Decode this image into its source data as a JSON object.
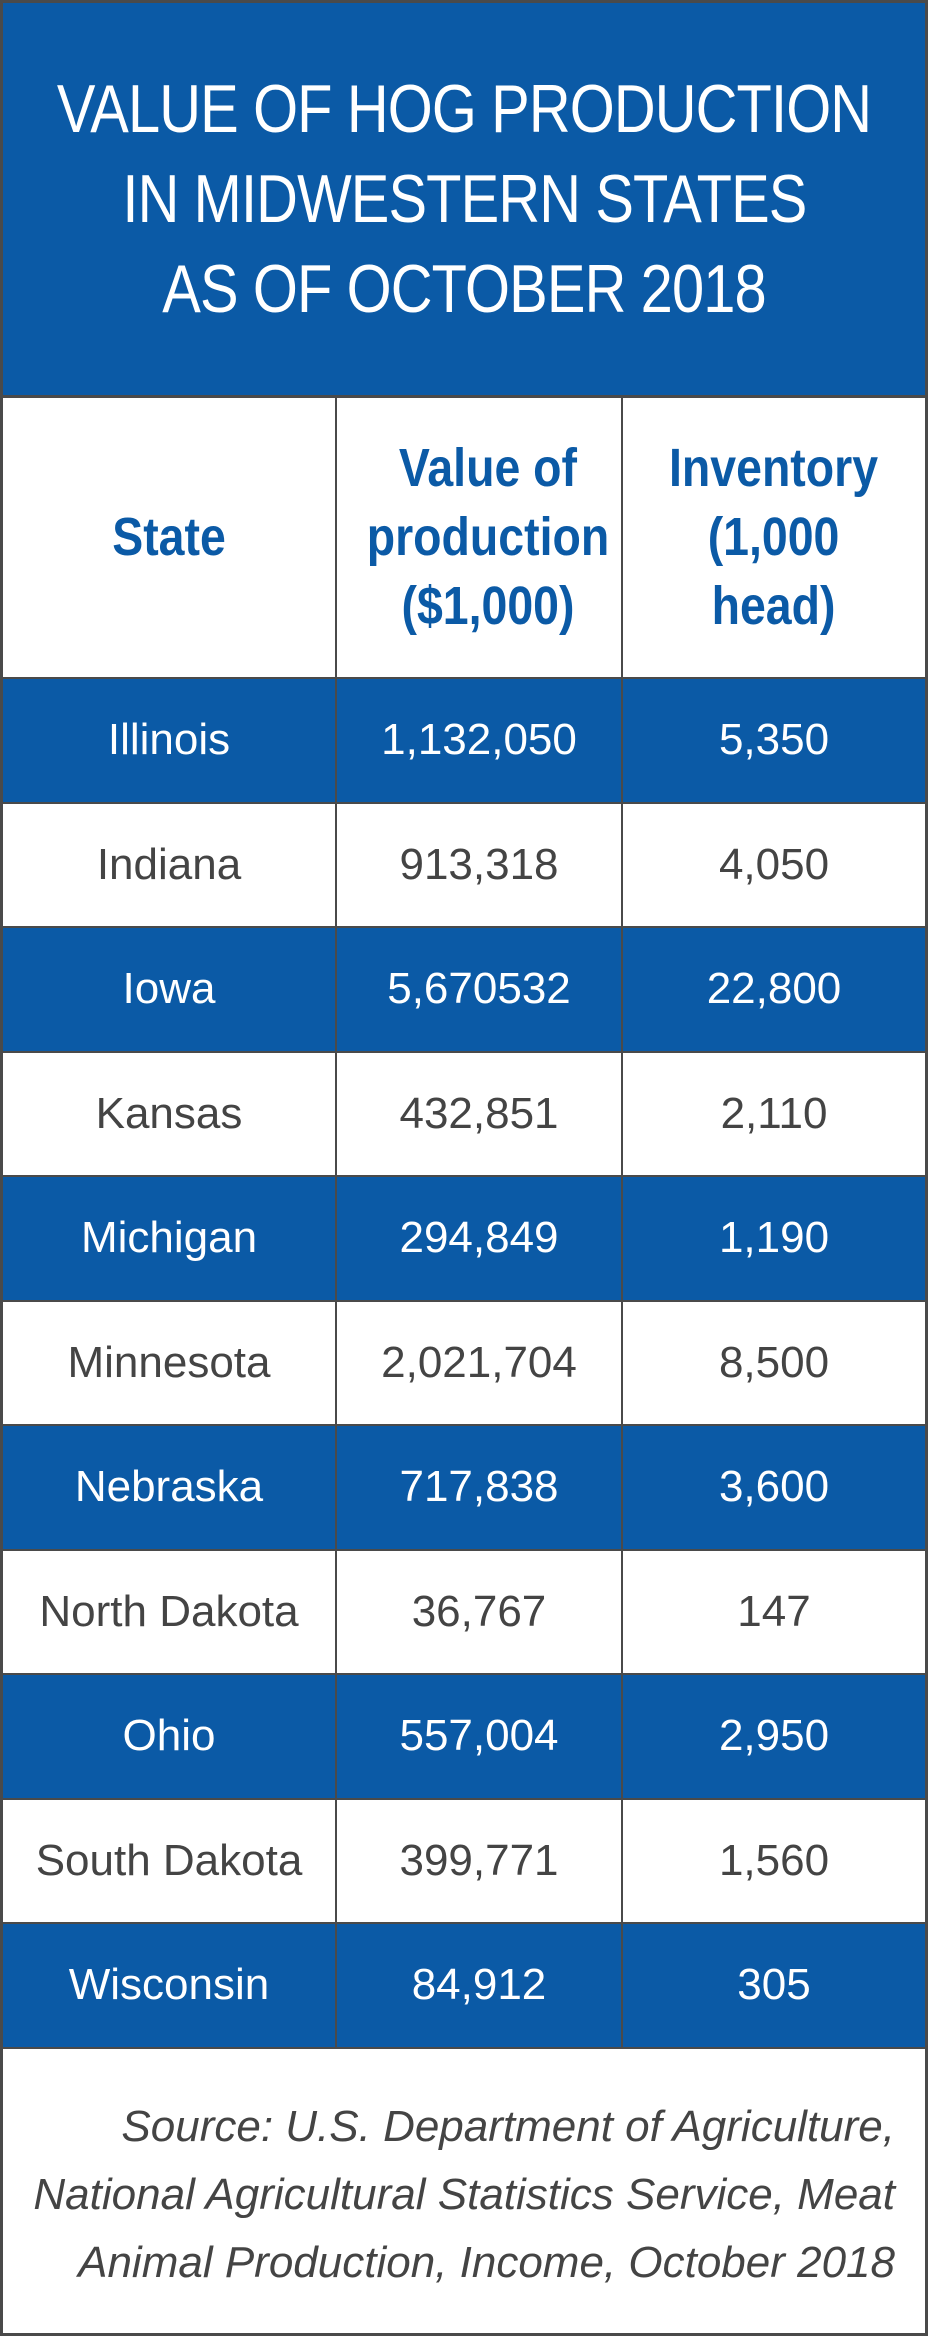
{
  "title_lines": [
    "VALUE OF HOG PRODUCTION",
    "IN MIDWESTERN STATES",
    "AS OF OCTOBER 2018"
  ],
  "colors": {
    "header_blue": "#0b5aa6",
    "text_gray": "#444444",
    "border": "#4a4a4a",
    "white": "#ffffff"
  },
  "chart_data": {
    "type": "table",
    "title": "VALUE OF HOG PRODUCTION IN MIDWESTERN STATES AS OF OCTOBER 2018",
    "columns": [
      "State",
      "Value of\nproduction\n($1,000)",
      "Inventory\n(1,000\nhead)"
    ],
    "rows": [
      [
        "Illinois",
        "1,132,050",
        "5,350"
      ],
      [
        "Indiana",
        "913,318",
        "4,050"
      ],
      [
        "Iowa",
        "5,670532",
        "22,800"
      ],
      [
        "Kansas",
        "432,851",
        "2,110"
      ],
      [
        "Michigan",
        "294,849",
        "1,190"
      ],
      [
        "Minnesota",
        "2,021,704",
        "8,500"
      ],
      [
        "Nebraska",
        "717,838",
        "3,600"
      ],
      [
        "North Dakota",
        "36,767",
        "147"
      ],
      [
        "Ohio",
        "557,004",
        "2,950"
      ],
      [
        "South Dakota",
        "399,771",
        "1,560"
      ],
      [
        "Wisconsin",
        "84,912",
        "305"
      ]
    ]
  },
  "source_lines": [
    "Source: U.S. Department of Agriculture,",
    "National Agricultural Statistics Service, Meat",
    "Animal Production, Income, October 2018"
  ]
}
